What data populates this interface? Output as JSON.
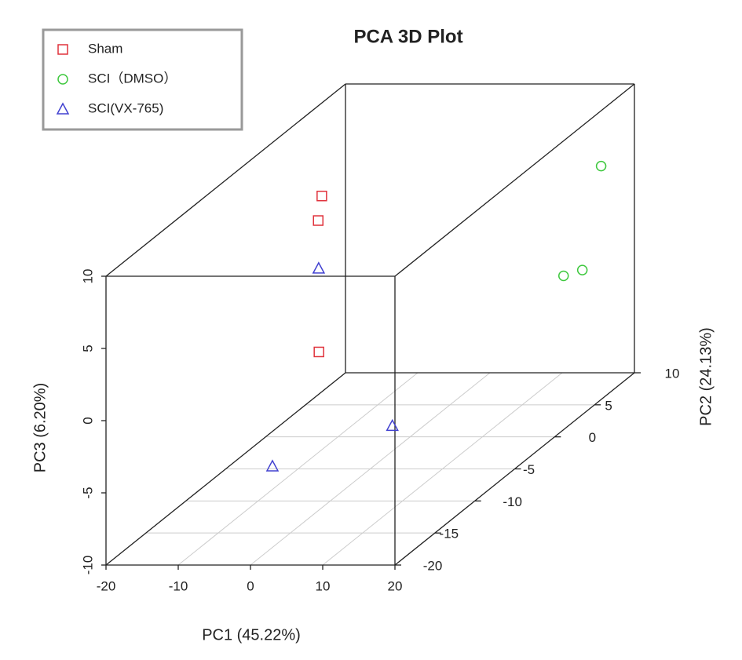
{
  "chart_data": {
    "type": "scatter3d",
    "title": "PCA 3D Plot",
    "x_label": "PC1 (45.22%)",
    "y_label": "PC2 (24.13%)",
    "z_label": "PC3 (6.20%)",
    "xlim": [
      -20,
      20
    ],
    "xticks": [
      -20,
      -10,
      0,
      10,
      20
    ],
    "ylim": [
      -20,
      10
    ],
    "yticks": [
      -20,
      -15,
      -10,
      -5,
      0,
      5,
      10
    ],
    "zlim": [
      -10,
      10
    ],
    "zticks": [
      -10,
      -5,
      0,
      5,
      10
    ],
    "grid": true,
    "legend": "top-left",
    "series": [
      {
        "name": "Sham",
        "color": "#e0323c",
        "marker": "square",
        "x": [
          -6.7,
          -7.2,
          -7.1
        ],
        "y": [
          -5,
          -5,
          -5
        ],
        "z": [
          8.9,
          7.2,
          -1.9
        ]
      },
      {
        "name": "SCI（DMSO）",
        "color": "#3ec83e",
        "marker": "circle",
        "x": [
          17.6,
          12.4,
          15.0
        ],
        "y": [
          8,
          8,
          8
        ],
        "z": [
          5.2,
          -2.4,
          -2.0
        ]
      },
      {
        "name": "SCI(VX-765)",
        "color": "#4040d0",
        "marker": "triangle",
        "x": [
          0.6,
          -5.8,
          10.8
        ],
        "y": [
          -12,
          -12,
          -12
        ],
        "z": [
          7.0,
          -6.7,
          -3.9
        ]
      }
    ]
  }
}
